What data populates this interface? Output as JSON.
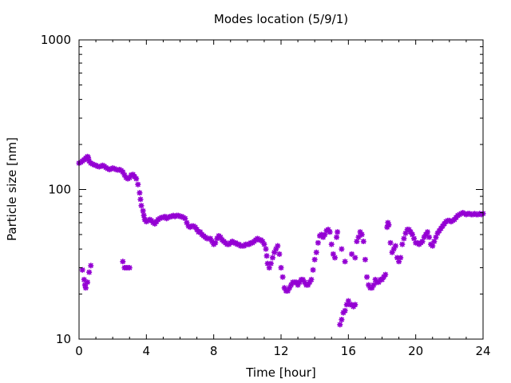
{
  "chart_data": {
    "type": "scatter",
    "title": "Modes location (5/9/1)",
    "xlabel": "Time [hour]",
    "ylabel": "Particle size [nm]",
    "xlim": [
      0,
      24
    ],
    "ylim": [
      10,
      1000
    ],
    "yscale": "log",
    "x_ticks": [
      0,
      4,
      8,
      12,
      16,
      20,
      24
    ],
    "x_tick_labels": [
      "0",
      "4",
      "8",
      "12",
      "16",
      "20",
      "24"
    ],
    "y_ticks": [
      10,
      100,
      1000
    ],
    "y_tick_labels": [
      "10",
      "100",
      "1000"
    ],
    "grid": false,
    "legend": "none",
    "marker_color": "#9400D3",
    "series": [
      {
        "points": [
          [
            0.0,
            150
          ],
          [
            0.1,
            152
          ],
          [
            0.2,
            155
          ],
          [
            0.3,
            158
          ],
          [
            0.4,
            162
          ],
          [
            0.5,
            166
          ],
          [
            0.55,
            163
          ],
          [
            0.6,
            155
          ],
          [
            0.7,
            150
          ],
          [
            0.8,
            148
          ],
          [
            0.9,
            146
          ],
          [
            1.0,
            145
          ],
          [
            1.1,
            143
          ],
          [
            1.2,
            142
          ],
          [
            1.3,
            143
          ],
          [
            1.4,
            145
          ],
          [
            1.5,
            143
          ],
          [
            1.6,
            140
          ],
          [
            1.7,
            138
          ],
          [
            1.8,
            136
          ],
          [
            1.9,
            137
          ],
          [
            2.0,
            139
          ],
          [
            2.1,
            138
          ],
          [
            2.2,
            136
          ],
          [
            2.3,
            135
          ],
          [
            2.4,
            136
          ],
          [
            2.5,
            134
          ],
          [
            2.6,
            131
          ],
          [
            2.7,
            125
          ],
          [
            2.8,
            120
          ],
          [
            2.9,
            118
          ],
          [
            3.0,
            120
          ],
          [
            3.1,
            125
          ],
          [
            3.2,
            126
          ],
          [
            3.3,
            122
          ],
          [
            3.4,
            118
          ],
          [
            3.5,
            108
          ],
          [
            3.6,
            95
          ],
          [
            3.65,
            86
          ],
          [
            3.7,
            78
          ],
          [
            3.8,
            72
          ],
          [
            3.85,
            67
          ],
          [
            3.9,
            63
          ],
          [
            4.0,
            61
          ],
          [
            4.1,
            62
          ],
          [
            4.2,
            63
          ],
          [
            4.3,
            62
          ],
          [
            4.4,
            60
          ],
          [
            4.5,
            59
          ],
          [
            4.6,
            61
          ],
          [
            4.7,
            63
          ],
          [
            4.8,
            64
          ],
          [
            4.9,
            65
          ],
          [
            5.0,
            65
          ],
          [
            5.1,
            66
          ],
          [
            5.2,
            64
          ],
          [
            5.3,
            65
          ],
          [
            5.4,
            66
          ],
          [
            5.5,
            66
          ],
          [
            5.6,
            67
          ],
          [
            5.7,
            66
          ],
          [
            5.8,
            67
          ],
          [
            5.9,
            67
          ],
          [
            6.0,
            66
          ],
          [
            6.1,
            66
          ],
          [
            6.2,
            65
          ],
          [
            6.3,
            64
          ],
          [
            6.4,
            60
          ],
          [
            6.5,
            57
          ],
          [
            6.6,
            56
          ],
          [
            6.7,
            57
          ],
          [
            6.8,
            57
          ],
          [
            6.9,
            56
          ],
          [
            7.0,
            54
          ],
          [
            7.1,
            52
          ],
          [
            7.2,
            52
          ],
          [
            7.3,
            50
          ],
          [
            7.4,
            49
          ],
          [
            7.5,
            48
          ],
          [
            7.6,
            47
          ],
          [
            7.7,
            47
          ],
          [
            7.8,
            47
          ],
          [
            7.9,
            45
          ],
          [
            8.0,
            43
          ],
          [
            8.1,
            44
          ],
          [
            8.2,
            47
          ],
          [
            8.3,
            49
          ],
          [
            8.4,
            48
          ],
          [
            8.5,
            46
          ],
          [
            8.6,
            45
          ],
          [
            8.7,
            44
          ],
          [
            8.8,
            43
          ],
          [
            8.9,
            43
          ],
          [
            9.0,
            44
          ],
          [
            9.1,
            45
          ],
          [
            9.2,
            44
          ],
          [
            9.3,
            44
          ],
          [
            9.4,
            43
          ],
          [
            9.5,
            43
          ],
          [
            9.6,
            42
          ],
          [
            9.7,
            42
          ],
          [
            9.8,
            42
          ],
          [
            9.9,
            43
          ],
          [
            10.0,
            43
          ],
          [
            10.1,
            43
          ],
          [
            10.2,
            44
          ],
          [
            10.3,
            44
          ],
          [
            10.4,
            45
          ],
          [
            10.5,
            46
          ],
          [
            10.6,
            47
          ],
          [
            10.7,
            46
          ],
          [
            10.8,
            46
          ],
          [
            10.9,
            45
          ],
          [
            11.0,
            43
          ],
          [
            11.1,
            40
          ],
          [
            11.15,
            36
          ],
          [
            11.2,
            32
          ],
          [
            11.3,
            30
          ],
          [
            11.4,
            32
          ],
          [
            11.5,
            35
          ],
          [
            11.6,
            38
          ],
          [
            11.7,
            40
          ],
          [
            11.8,
            42
          ],
          [
            11.9,
            37
          ],
          [
            12.0,
            30
          ],
          [
            12.1,
            26
          ],
          [
            12.2,
            22
          ],
          [
            12.3,
            21
          ],
          [
            12.4,
            21
          ],
          [
            12.5,
            22
          ],
          [
            12.6,
            23
          ],
          [
            12.7,
            24
          ],
          [
            12.8,
            24
          ],
          [
            12.9,
            24
          ],
          [
            13.0,
            23
          ],
          [
            13.1,
            24
          ],
          [
            13.2,
            25
          ],
          [
            13.3,
            25
          ],
          [
            13.4,
            24
          ],
          [
            13.5,
            23
          ],
          [
            13.6,
            23
          ],
          [
            13.7,
            24
          ],
          [
            13.8,
            25
          ],
          [
            13.9,
            29
          ],
          [
            14.0,
            34
          ],
          [
            14.1,
            38
          ],
          [
            14.2,
            44
          ],
          [
            14.3,
            49
          ],
          [
            14.4,
            50
          ],
          [
            14.5,
            48
          ],
          [
            14.6,
            50
          ],
          [
            14.7,
            53
          ],
          [
            14.8,
            54
          ],
          [
            14.9,
            52
          ],
          [
            15.0,
            43
          ],
          [
            15.1,
            37
          ],
          [
            15.2,
            35
          ],
          [
            15.3,
            48
          ],
          [
            15.35,
            52
          ],
          [
            15.5,
            12.5
          ],
          [
            15.6,
            13.5
          ],
          [
            15.7,
            15
          ],
          [
            15.8,
            15.5
          ],
          [
            15.9,
            17
          ],
          [
            16.0,
            18
          ],
          [
            16.1,
            17
          ],
          [
            16.2,
            17
          ],
          [
            16.3,
            16.5
          ],
          [
            16.4,
            17
          ],
          [
            15.6,
            40
          ],
          [
            15.8,
            33
          ],
          [
            16.2,
            37
          ],
          [
            16.4,
            35
          ],
          [
            16.5,
            45
          ],
          [
            16.6,
            48
          ],
          [
            16.7,
            52
          ],
          [
            16.8,
            50
          ],
          [
            16.9,
            45
          ],
          [
            17.0,
            34
          ],
          [
            17.1,
            26
          ],
          [
            17.2,
            23
          ],
          [
            17.3,
            22
          ],
          [
            17.4,
            22
          ],
          [
            17.5,
            23
          ],
          [
            17.6,
            25
          ],
          [
            17.7,
            24
          ],
          [
            17.8,
            24
          ],
          [
            17.9,
            25
          ],
          [
            18.0,
            25
          ],
          [
            18.1,
            26
          ],
          [
            18.2,
            27
          ],
          [
            18.3,
            56
          ],
          [
            18.35,
            60
          ],
          [
            18.4,
            58
          ],
          [
            18.5,
            44
          ],
          [
            18.6,
            38
          ],
          [
            18.7,
            40
          ],
          [
            18.8,
            42
          ],
          [
            18.9,
            35
          ],
          [
            19.0,
            33
          ],
          [
            19.1,
            35
          ],
          [
            19.2,
            43
          ],
          [
            19.3,
            47
          ],
          [
            19.4,
            51
          ],
          [
            19.5,
            54
          ],
          [
            19.6,
            54
          ],
          [
            19.7,
            52
          ],
          [
            19.8,
            50
          ],
          [
            19.9,
            47
          ],
          [
            20.0,
            44
          ],
          [
            20.1,
            44
          ],
          [
            20.2,
            43
          ],
          [
            20.3,
            44
          ],
          [
            20.4,
            45
          ],
          [
            20.5,
            48
          ],
          [
            20.6,
            50
          ],
          [
            20.7,
            52
          ],
          [
            20.8,
            48
          ],
          [
            20.9,
            43
          ],
          [
            21.0,
            42
          ],
          [
            21.1,
            45
          ],
          [
            21.2,
            48
          ],
          [
            21.3,
            51
          ],
          [
            21.4,
            53
          ],
          [
            21.5,
            55
          ],
          [
            21.6,
            57
          ],
          [
            21.7,
            59
          ],
          [
            21.8,
            61
          ],
          [
            21.9,
            62
          ],
          [
            22.0,
            62
          ],
          [
            22.1,
            61
          ],
          [
            22.2,
            62
          ],
          [
            22.3,
            63
          ],
          [
            22.4,
            65
          ],
          [
            22.5,
            67
          ],
          [
            22.6,
            68
          ],
          [
            22.7,
            69
          ],
          [
            22.8,
            70
          ],
          [
            22.9,
            69
          ],
          [
            23.0,
            68
          ],
          [
            23.1,
            69
          ],
          [
            23.2,
            69
          ],
          [
            23.3,
            68
          ],
          [
            23.4,
            68
          ],
          [
            23.5,
            69
          ],
          [
            23.6,
            68
          ],
          [
            23.7,
            68
          ],
          [
            23.8,
            69
          ],
          [
            23.9,
            68
          ],
          [
            24.0,
            69
          ],
          [
            0.2,
            29
          ],
          [
            0.3,
            25
          ],
          [
            0.35,
            23
          ],
          [
            0.4,
            22
          ],
          [
            0.5,
            24
          ],
          [
            0.6,
            28
          ],
          [
            0.7,
            31
          ],
          [
            2.6,
            33
          ],
          [
            2.7,
            30
          ],
          [
            2.8,
            30
          ],
          [
            2.9,
            30
          ],
          [
            3.0,
            30
          ]
        ]
      }
    ]
  }
}
